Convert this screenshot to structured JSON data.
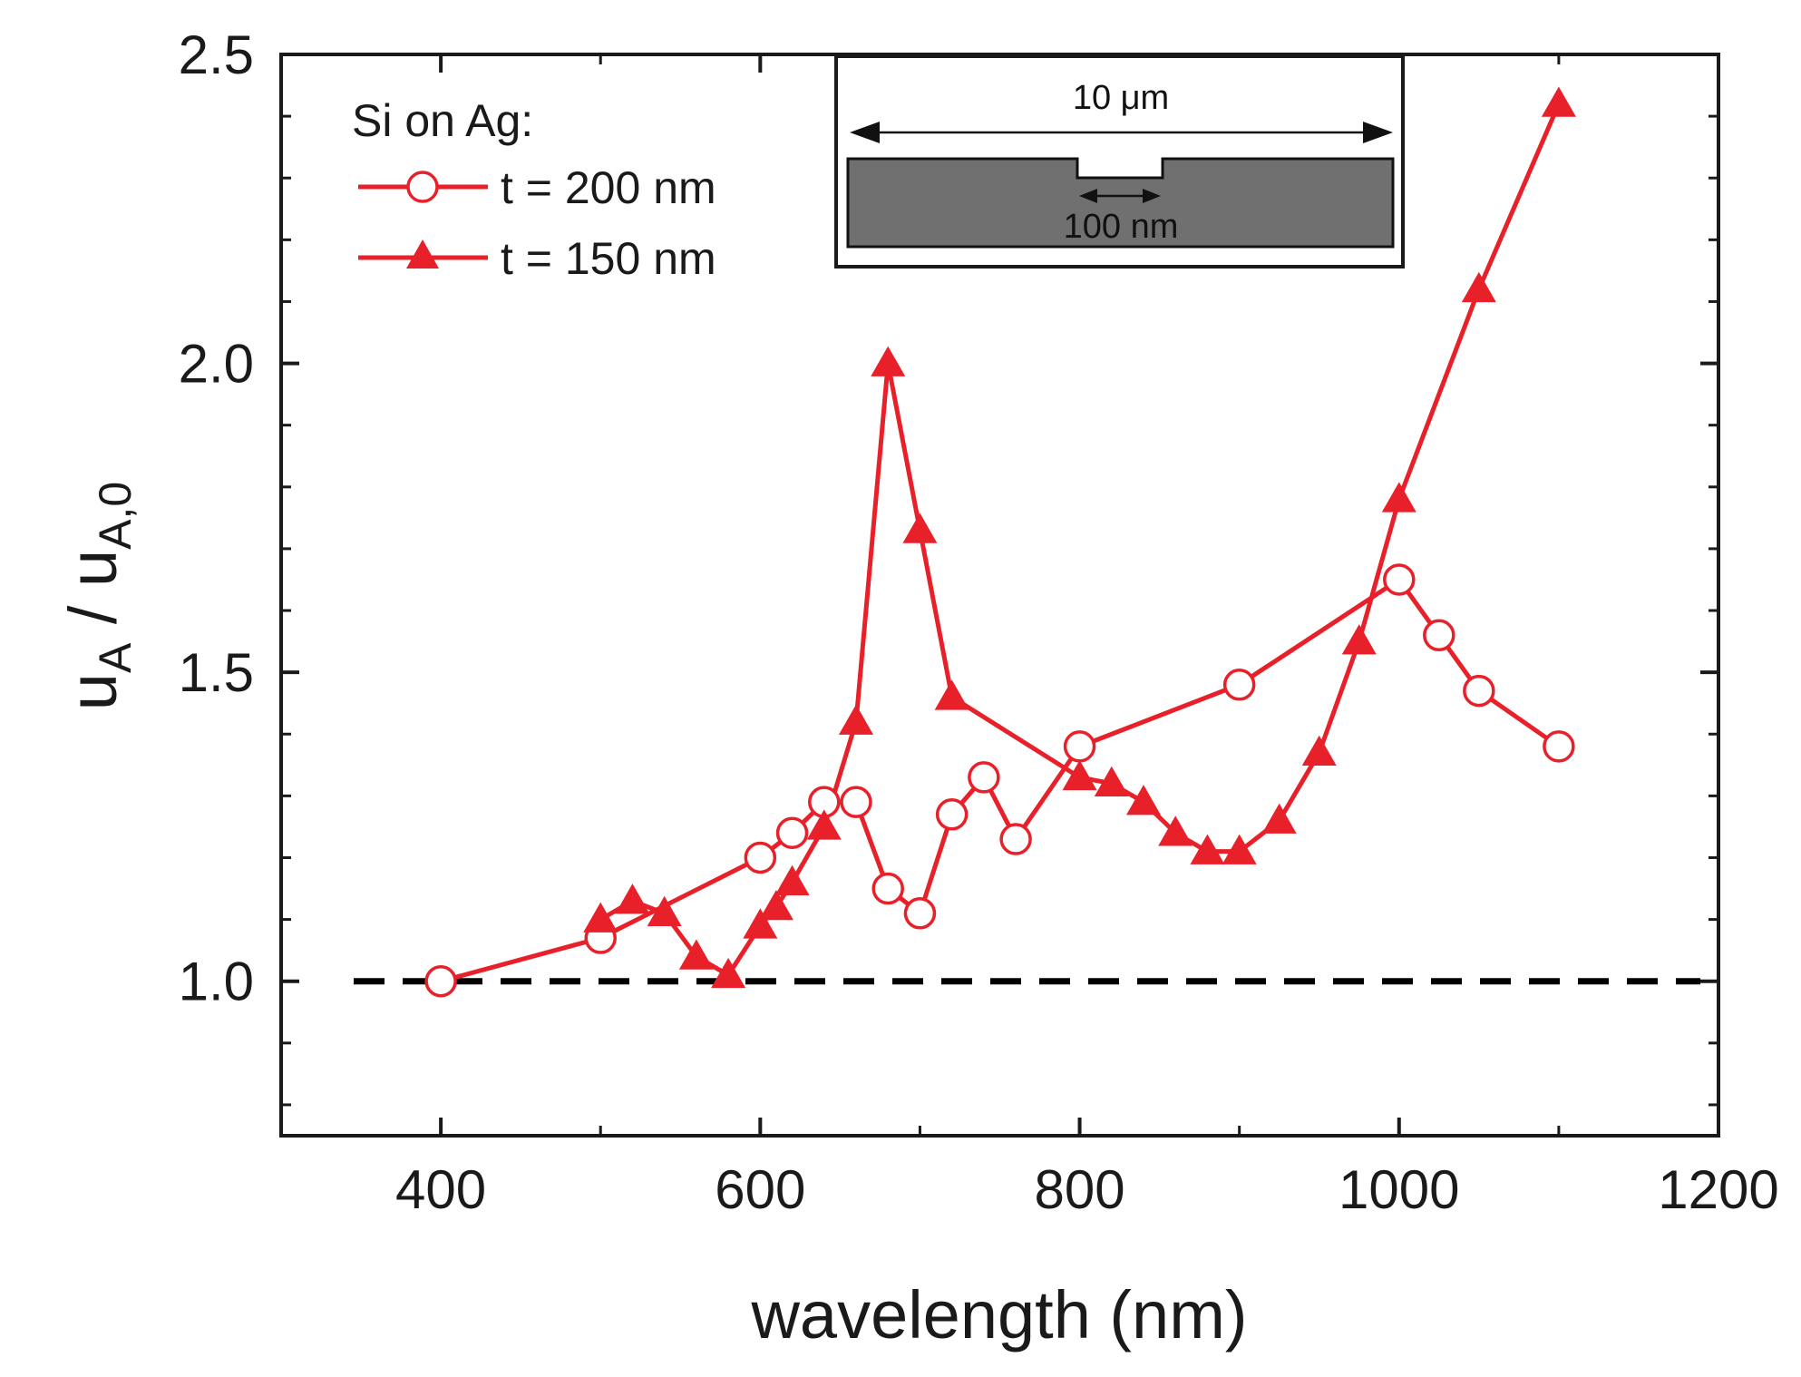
{
  "chart_data": {
    "type": "line",
    "title": "",
    "xlabel": "wavelength (nm)",
    "ylabel": {
      "u1": "u",
      "sub1": "A",
      "slash": " / ",
      "u2": "u",
      "sub2": "A,0"
    },
    "xlim": [
      300,
      1200
    ],
    "ylim": [
      0.75,
      2.5
    ],
    "x_ticks": [
      400,
      600,
      800,
      1000,
      1200
    ],
    "x_tick_labels": [
      "400",
      "600",
      "800",
      "1000",
      "1200"
    ],
    "y_ticks": [
      1.0,
      1.5,
      2.0,
      2.5
    ],
    "y_tick_labels": [
      "1.0",
      "1.5",
      "2.0",
      "2.5"
    ],
    "grid": false,
    "legend": {
      "title": "Si on Ag:",
      "placement": "top-left"
    },
    "reference_line": {
      "y": 1.0,
      "style": "dashed",
      "color": "#000000"
    },
    "series": [
      {
        "name": "t = 200 nm",
        "marker": "open-circle",
        "color": "#e8202a",
        "x": [
          400,
          500,
          600,
          620,
          640,
          660,
          680,
          700,
          720,
          740,
          760,
          800,
          900,
          1000,
          1025,
          1050,
          1100
        ],
        "y": [
          1.0,
          1.07,
          1.2,
          1.24,
          1.29,
          1.29,
          1.15,
          1.11,
          1.27,
          1.33,
          1.23,
          1.38,
          1.48,
          1.65,
          1.56,
          1.47,
          1.38
        ]
      },
      {
        "name": "t = 150 nm",
        "marker": "filled-triangle",
        "color": "#e8202a",
        "x": [
          500,
          520,
          540,
          560,
          580,
          600,
          610,
          620,
          640,
          660,
          680,
          700,
          720,
          800,
          820,
          840,
          860,
          880,
          900,
          925,
          950,
          975,
          1000,
          1050,
          1100
        ],
        "y": [
          1.1,
          1.13,
          1.11,
          1.04,
          1.01,
          1.09,
          1.12,
          1.16,
          1.25,
          1.42,
          2.0,
          1.73,
          1.46,
          1.33,
          1.32,
          1.29,
          1.24,
          1.21,
          1.21,
          1.26,
          1.37,
          1.55,
          1.78,
          2.12,
          2.42
        ]
      }
    ],
    "inset": {
      "top_label": "10 μm",
      "bottom_label": "100 nm"
    }
  }
}
